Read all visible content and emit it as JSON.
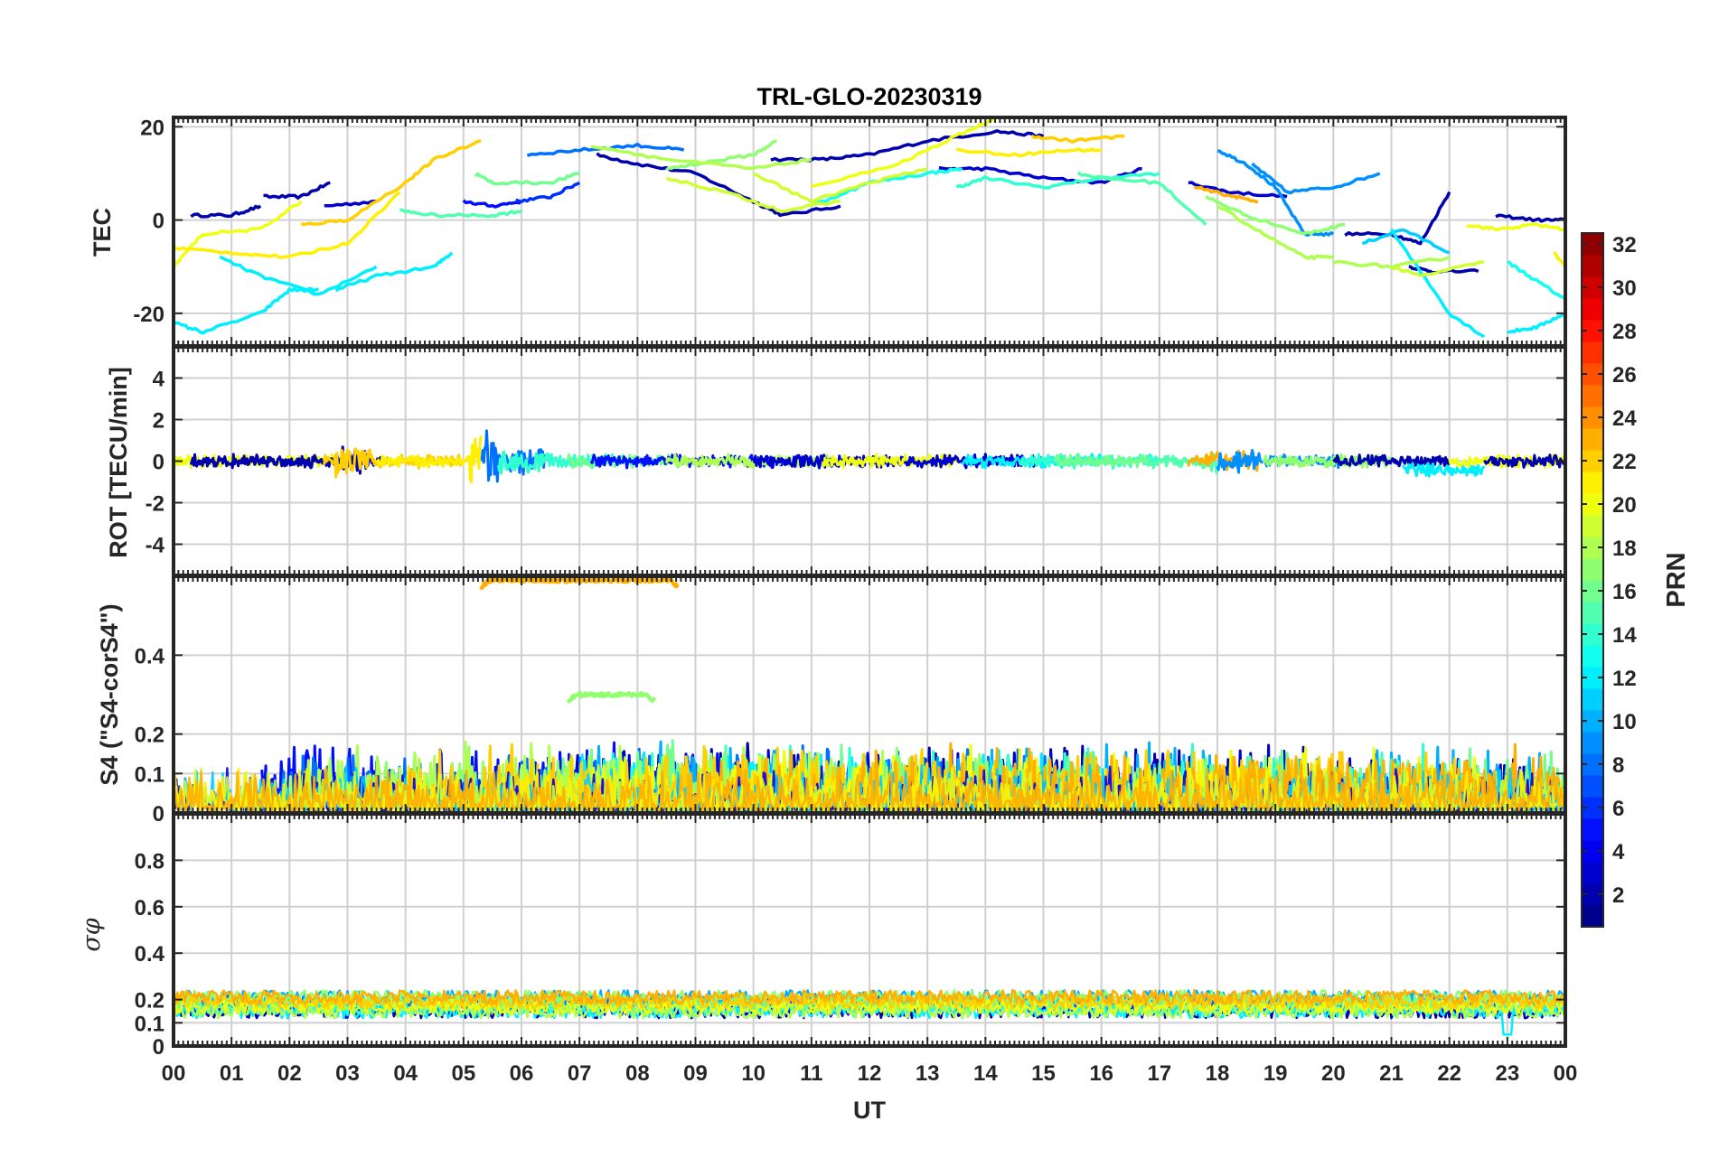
{
  "figure": {
    "title": "TRL-GLO-20230319",
    "xlabel": "UT",
    "x_ticks": [
      "00",
      "01",
      "02",
      "03",
      "04",
      "05",
      "06",
      "07",
      "08",
      "09",
      "10",
      "11",
      "12",
      "13",
      "14",
      "15",
      "16",
      "17",
      "18",
      "19",
      "20",
      "21",
      "22",
      "23",
      "00"
    ]
  },
  "colorbar": {
    "label": "PRN",
    "range": [
      1,
      32
    ],
    "ticks": [
      "2",
      "4",
      "6",
      "8",
      "10",
      "12",
      "14",
      "16",
      "18",
      "20",
      "22",
      "24",
      "26",
      "28",
      "30",
      "32"
    ],
    "colormap": "jet"
  },
  "chart_data": [
    {
      "type": "line",
      "panel": "TEC",
      "ylabel": "TEC",
      "ylim": [
        -27,
        22
      ],
      "y_ticks": [
        "20",
        "0",
        "-20"
      ],
      "xlim_hours": [
        0,
        24
      ],
      "series": [
        {
          "prn": 2,
          "x": [
            0.3,
            1.0,
            1.5
          ],
          "y": [
            1,
            1,
            3
          ]
        },
        {
          "prn": 2,
          "x": [
            1.55,
            2.2,
            2.7
          ],
          "y": [
            5,
            5,
            8
          ]
        },
        {
          "prn": 3,
          "x": [
            2.6,
            3.5
          ],
          "y": [
            3,
            4
          ]
        },
        {
          "prn": 2,
          "x": [
            7.3,
            8.0,
            9.0,
            10.0,
            10.5,
            11.5
          ],
          "y": [
            14,
            12,
            10,
            4,
            1,
            3
          ]
        },
        {
          "prn": 2,
          "x": [
            10.3,
            11.2,
            12.0,
            13.0,
            14.2,
            15.0
          ],
          "y": [
            13,
            13,
            14,
            17,
            19,
            18
          ]
        },
        {
          "prn": 3,
          "x": [
            13.2,
            14.0,
            15.0,
            16.0,
            16.7
          ],
          "y": [
            11,
            11,
            9,
            8,
            11
          ]
        },
        {
          "prn": 3,
          "x": [
            17.5,
            18.2,
            19.2
          ],
          "y": [
            8,
            6,
            5
          ]
        },
        {
          "prn": 2,
          "x": [
            20.2,
            21.0,
            21.5,
            22.0
          ],
          "y": [
            -3,
            -3,
            -5,
            6
          ]
        },
        {
          "prn": 2,
          "x": [
            21.3,
            21.7,
            22.5
          ],
          "y": [
            -10,
            -11,
            -11
          ]
        },
        {
          "prn": 2,
          "x": [
            22.8,
            23.5,
            24.0
          ],
          "y": [
            1,
            0,
            0
          ]
        },
        {
          "prn": 5,
          "x": [
            5.0,
            5.5,
            6.0
          ],
          "y": [
            4,
            3,
            4
          ]
        },
        {
          "prn": 6,
          "x": [
            5.9,
            6.5,
            7.0
          ],
          "y": [
            4,
            5,
            8
          ]
        },
        {
          "prn": 8,
          "x": [
            6.1,
            7.0,
            8.0,
            8.8
          ],
          "y": [
            14,
            15,
            16,
            15
          ]
        },
        {
          "prn": 9,
          "x": [
            18.6,
            19.2,
            20.0,
            20.8
          ],
          "y": [
            12,
            6,
            7,
            10
          ]
        },
        {
          "prn": 9,
          "x": [
            18.0,
            18.5,
            19.0,
            19.5,
            20.0
          ],
          "y": [
            15,
            12,
            7,
            -3,
            -3
          ]
        },
        {
          "prn": 11,
          "x": [
            20.5,
            21.2,
            22.0
          ],
          "y": [
            -5,
            -2,
            -7
          ]
        },
        {
          "prn": 12,
          "x": [
            0.0,
            0.5,
            1.5,
            2.0,
            2.5
          ],
          "y": [
            -22,
            -24,
            -20,
            -15,
            -15
          ]
        },
        {
          "prn": 12,
          "x": [
            0.8,
            1.5,
            2.5,
            3.5
          ],
          "y": [
            -8,
            -12,
            -16,
            -10
          ]
        },
        {
          "prn": 12,
          "x": [
            2.8,
            3.5,
            4.5,
            4.8
          ],
          "y": [
            -15,
            -12,
            -10,
            -7
          ]
        },
        {
          "prn": 12,
          "x": [
            21.0,
            22.0,
            22.6
          ],
          "y": [
            -2,
            -20,
            -25
          ]
        },
        {
          "prn": 12,
          "x": [
            23.0,
            23.5,
            24.0
          ],
          "y": [
            -24,
            -23,
            -20
          ]
        },
        {
          "prn": 13,
          "x": [
            11.0,
            12.0,
            13.0,
            13.6
          ],
          "y": [
            3,
            8,
            10,
            11
          ]
        },
        {
          "prn": 13,
          "x": [
            23.0,
            23.5,
            24.0
          ],
          "y": [
            -9,
            -13,
            -17
          ]
        },
        {
          "prn": 14,
          "x": [
            13.5,
            14.0,
            15.0,
            16.0,
            17.0
          ],
          "y": [
            7,
            9,
            7,
            9,
            10
          ]
        },
        {
          "prn": 15,
          "x": [
            3.9,
            4.5,
            5.5,
            6.0
          ],
          "y": [
            2,
            1,
            1,
            2
          ]
        },
        {
          "prn": 15,
          "x": [
            15.6,
            16.0,
            17.0,
            17.8
          ],
          "y": [
            10,
            9,
            8,
            -1
          ]
        },
        {
          "prn": 16,
          "x": [
            5.2,
            5.5,
            6.5,
            7.0
          ],
          "y": [
            10,
            8,
            8,
            10
          ]
        },
        {
          "prn": 17,
          "x": [
            8.5,
            9.0,
            10.0,
            10.4
          ],
          "y": [
            11,
            12,
            14,
            17
          ]
        },
        {
          "prn": 17,
          "x": [
            17.8,
            18.5,
            19.5,
            20.2
          ],
          "y": [
            5,
            1,
            -3,
            -1
          ]
        },
        {
          "prn": 18,
          "x": [
            7.2,
            8.5,
            10.0,
            11.0
          ],
          "y": [
            16,
            13,
            11,
            13
          ]
        },
        {
          "prn": 18,
          "x": [
            18.0,
            18.8,
            19.5,
            20.0
          ],
          "y": [
            3,
            -3,
            -8,
            -8
          ]
        },
        {
          "prn": 18,
          "x": [
            20.0,
            21.0,
            22.0
          ],
          "y": [
            -9,
            -10,
            -8
          ]
        },
        {
          "prn": 19,
          "x": [
            8.5,
            9.5,
            10.5,
            11.5
          ],
          "y": [
            9,
            6,
            2,
            4
          ]
        },
        {
          "prn": 19,
          "x": [
            10.0,
            11.0,
            12.0,
            13.0
          ],
          "y": [
            10,
            4,
            8,
            11
          ]
        },
        {
          "prn": 19,
          "x": [
            21.0,
            21.5,
            22.6
          ],
          "y": [
            -10,
            -12,
            -9
          ]
        },
        {
          "prn": 20,
          "x": [
            0.0,
            0.5,
            1.5,
            2.2
          ],
          "y": [
            -10,
            -3,
            -2,
            4
          ]
        },
        {
          "prn": 20,
          "x": [
            11.0,
            12.5,
            13.5,
            14.2
          ],
          "y": [
            7,
            12,
            18,
            22
          ]
        },
        {
          "prn": 20,
          "x": [
            22.3,
            22.8,
            23.5,
            24.0
          ],
          "y": [
            -1,
            -2,
            -1,
            -2
          ]
        },
        {
          "prn": 21,
          "x": [
            0.0,
            1.0,
            2.0,
            3.0,
            3.9
          ],
          "y": [
            -6,
            -7,
            -8,
            -5,
            6
          ]
        },
        {
          "prn": 21,
          "x": [
            13.5,
            14.5,
            15.5,
            16.0
          ],
          "y": [
            15,
            14,
            15,
            15
          ]
        },
        {
          "prn": 21,
          "x": [
            23.8,
            24.0
          ],
          "y": [
            -7,
            -10
          ]
        },
        {
          "prn": 22,
          "x": [
            2.2,
            3.0,
            4.0,
            4.5,
            5.3
          ],
          "y": [
            -1,
            0,
            8,
            13,
            17
          ]
        },
        {
          "prn": 22,
          "x": [
            14.8,
            15.5,
            16.4
          ],
          "y": [
            18,
            17,
            18
          ]
        },
        {
          "prn": 23,
          "x": [
            17.6,
            18.3,
            18.7
          ],
          "y": [
            7,
            5,
            4
          ]
        }
      ]
    },
    {
      "type": "line",
      "panel": "ROT",
      "ylabel": "ROT [TECU/min]",
      "ylim": [
        -5.5,
        5.5
      ],
      "y_ticks": [
        "4",
        "2",
        "0",
        "-2",
        "-4"
      ],
      "xlim_hours": [
        0,
        24
      ],
      "series_prn": [
        2,
        3,
        5,
        8,
        12,
        14,
        16,
        18,
        20,
        22,
        23
      ],
      "note": "noisy series clustered around 0 TECU/min; spikes up to about 1.7 and down to -1.6 near 05:20 UT"
    },
    {
      "type": "line",
      "panel": "S4",
      "ylabel": "S4 (\"S4-corS4\")",
      "ylim": [
        0,
        0.6
      ],
      "y_ticks": [
        "0.4",
        "0.2",
        "0.1",
        "0"
      ],
      "xlim_hours": [
        0,
        24
      ],
      "series": [
        {
          "prn": 23,
          "x_range": [
            5.3,
            8.7
          ],
          "level": 0.59,
          "label": "flat near 0.59"
        },
        {
          "prn": 17,
          "x_range": [
            6.8,
            8.3
          ],
          "level": 0.3,
          "label": "flat near 0.30"
        }
      ],
      "background_level": "noisy 0 to 0.15 for all PRNs, peaks near 0.21 at 10:30 UT"
    },
    {
      "type": "line",
      "panel": "sigma_phi",
      "ylabel": "σφ",
      "ylim": [
        0,
        1.0
      ],
      "y_ticks": [
        "0.8",
        "0.6",
        "0.4",
        "0.2",
        "0.1",
        "0"
      ],
      "xlim_hours": [
        0,
        24
      ],
      "background_level": "noisy 0.1 to 0.25 for all PRNs; drop to about 0.05 near 23:00 UT"
    }
  ]
}
